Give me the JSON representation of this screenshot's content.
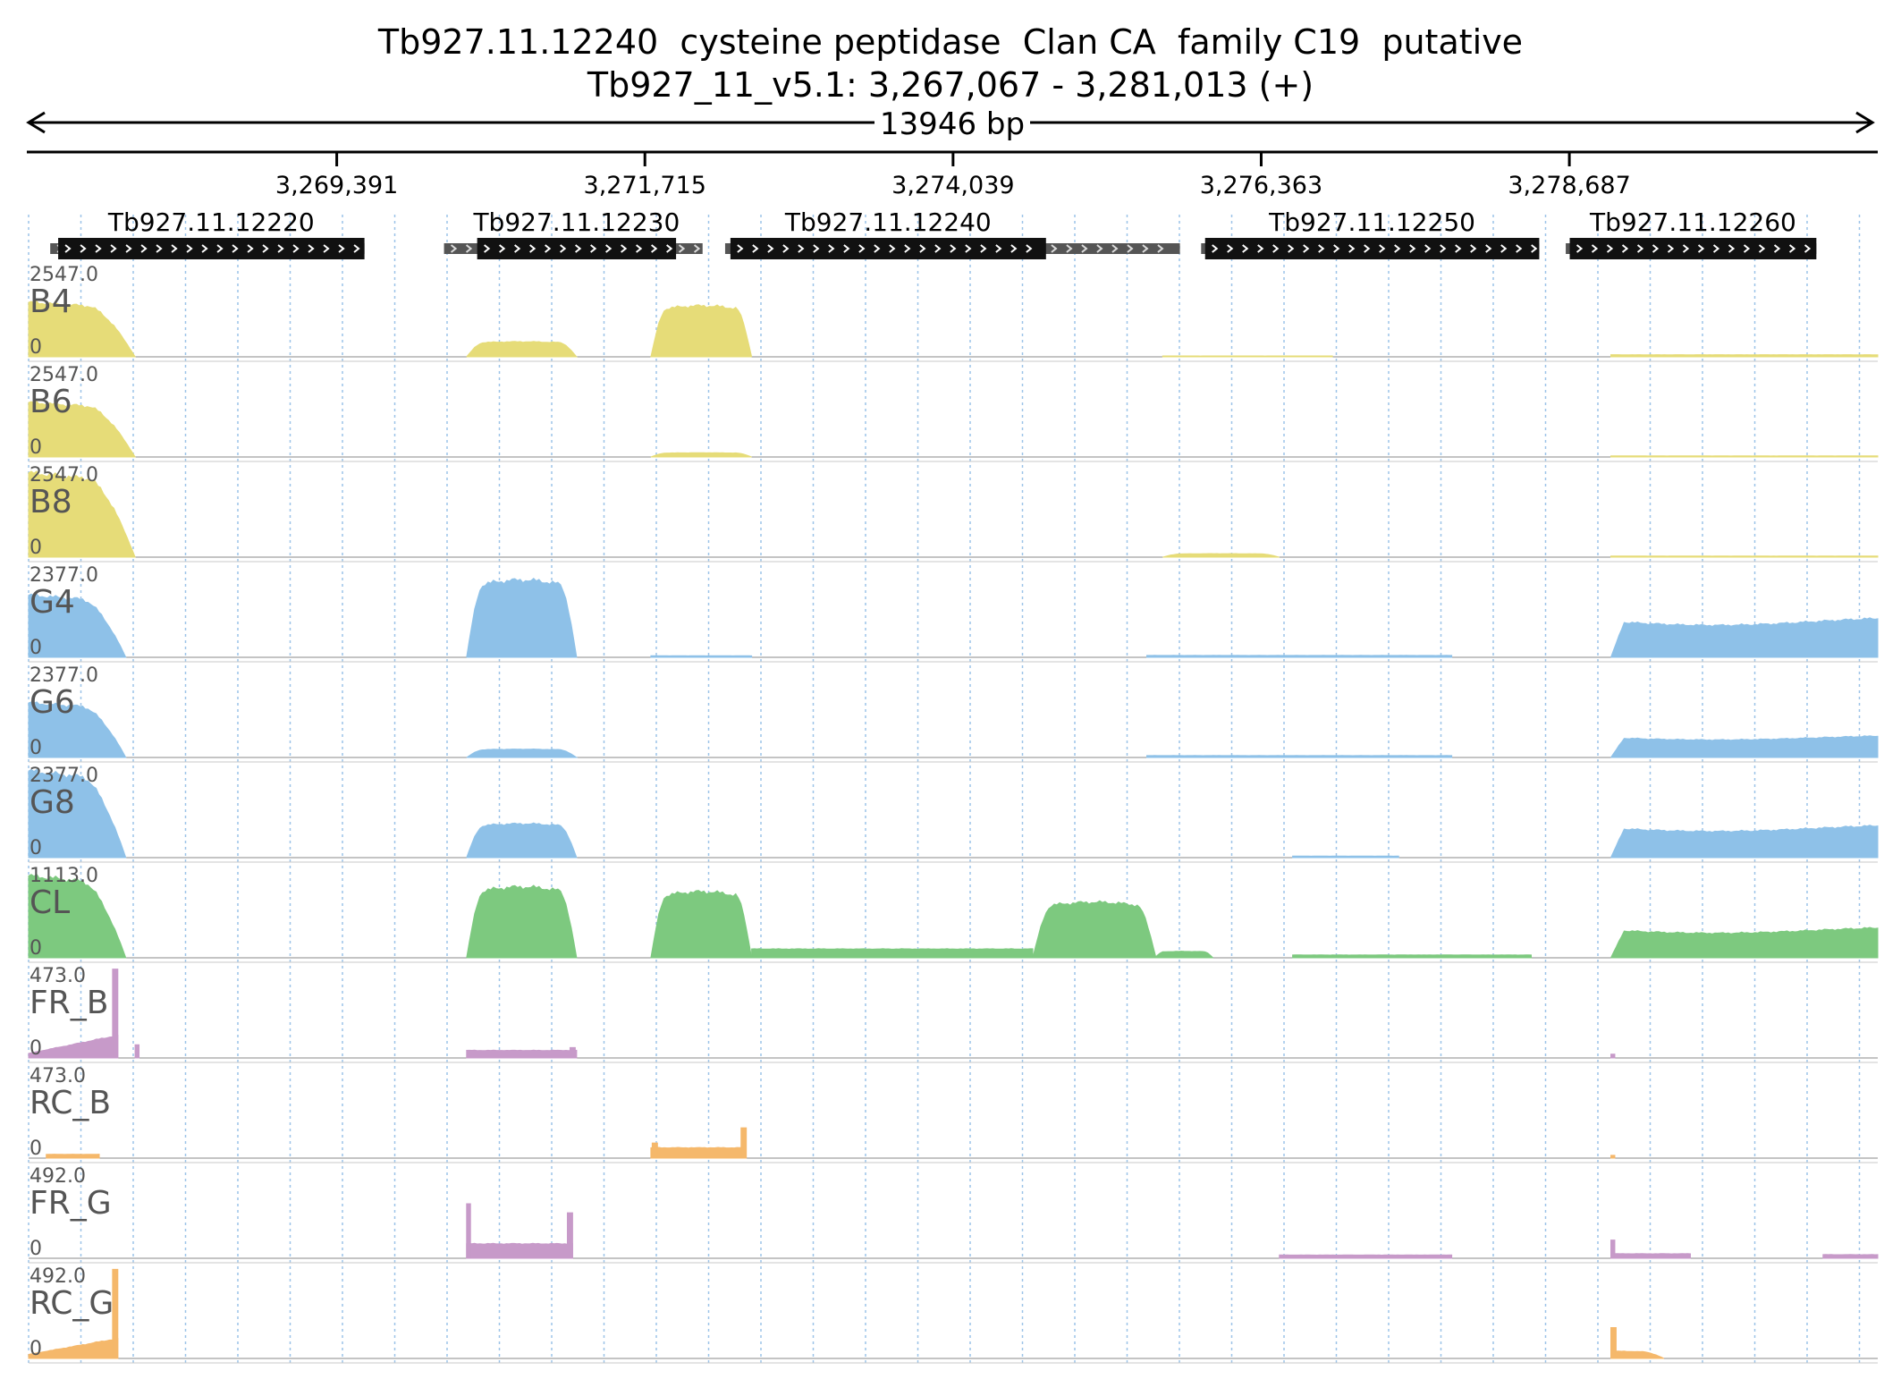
{
  "header": {
    "title": "Tb927.11.12240  cysteine peptidase  Clan CA  family C19  putative",
    "region": "Tb927_11_v5.1: 3,267,067 - 3,281,013 (+)",
    "span_label": "13946 bp"
  },
  "chart_data": {
    "type": "area",
    "chromosome": "Tb927_11_v5.1",
    "xlim": [
      3267067,
      3281013
    ],
    "x_ticks": [
      3269391,
      3271715,
      3274039,
      3276363,
      3278687
    ],
    "x_tick_labels": [
      "3,269,391",
      "3,271,715",
      "3,274,039",
      "3,276,363",
      "3,278,687"
    ],
    "genes": [
      {
        "name": "Tb927.11.12220",
        "strand": "+",
        "cds": [
          3267290,
          3269600
        ],
        "utr": [
          3267230,
          3269600
        ]
      },
      {
        "name": "Tb927.11.12230",
        "strand": "+",
        "cds": [
          3270450,
          3271950
        ],
        "utr": [
          3270200,
          3272150
        ]
      },
      {
        "name": "Tb927.11.12240",
        "strand": "+",
        "cds": [
          3272360,
          3274740
        ],
        "utr": [
          3272320,
          3275750
        ]
      },
      {
        "name": "Tb927.11.12250",
        "strand": "+",
        "cds": [
          3275940,
          3278460
        ],
        "utr": [
          3275910,
          3278460
        ]
      },
      {
        "name": "Tb927.11.12260",
        "strand": "+",
        "cds": [
          3278690,
          3280550
        ],
        "utr": [
          3278660,
          3280550
        ]
      }
    ],
    "tracks": [
      {
        "label": "B4",
        "ymax_label": "2547.0",
        "ymin_label": "0",
        "ylim": [
          0,
          2547
        ],
        "color": "#e6dc78",
        "segments": [
          {
            "start": 3267067,
            "end": 3267870,
            "peak": 1550,
            "shape": "decay"
          },
          {
            "start": 3270370,
            "end": 3271200,
            "peak": 430,
            "shape": "dome"
          },
          {
            "start": 3271760,
            "end": 3272520,
            "peak": 1450,
            "shape": "dome"
          },
          {
            "start": 3275620,
            "end": 3276900,
            "peak": 25,
            "shape": "flat"
          },
          {
            "start": 3279000,
            "end": 3281013,
            "peak": 60,
            "shape": "flat"
          }
        ]
      },
      {
        "label": "B6",
        "ymax_label": "2547.0",
        "ymin_label": "0",
        "ylim": [
          0,
          2547
        ],
        "color": "#e6dc78",
        "segments": [
          {
            "start": 3267067,
            "end": 3267870,
            "peak": 1550,
            "shape": "decay"
          },
          {
            "start": 3271760,
            "end": 3272520,
            "peak": 120,
            "shape": "dome"
          },
          {
            "start": 3279000,
            "end": 3281013,
            "peak": 30,
            "shape": "flat"
          }
        ]
      },
      {
        "label": "B8",
        "ymax_label": "2547.0",
        "ymin_label": "0",
        "ylim": [
          0,
          2547
        ],
        "color": "#e6dc78",
        "segments": [
          {
            "start": 3267067,
            "end": 3267870,
            "peak": 2400,
            "shape": "decay"
          },
          {
            "start": 3275620,
            "end": 3276500,
            "peak": 100,
            "shape": "dome"
          },
          {
            "start": 3279000,
            "end": 3281013,
            "peak": 30,
            "shape": "flat"
          }
        ]
      },
      {
        "label": "G4",
        "ymax_label": "2377.0",
        "ymin_label": "0",
        "ylim": [
          0,
          2377
        ],
        "color": "#8ec1e8",
        "segments": [
          {
            "start": 3267067,
            "end": 3267800,
            "peak": 1650,
            "shape": "decay"
          },
          {
            "start": 3270370,
            "end": 3271200,
            "peak": 2050,
            "shape": "dome"
          },
          {
            "start": 3271760,
            "end": 3272520,
            "peak": 40,
            "shape": "flat"
          },
          {
            "start": 3275500,
            "end": 3277800,
            "peak": 50,
            "shape": "flat"
          },
          {
            "start": 3279000,
            "end": 3281013,
            "peak": 1000,
            "shape": "plateau"
          }
        ]
      },
      {
        "label": "G6",
        "ymax_label": "2377.0",
        "ymin_label": "0",
        "ylim": [
          0,
          2377
        ],
        "color": "#8ec1e8",
        "segments": [
          {
            "start": 3267067,
            "end": 3267800,
            "peak": 1450,
            "shape": "decay"
          },
          {
            "start": 3270370,
            "end": 3271200,
            "peak": 220,
            "shape": "dome"
          },
          {
            "start": 3275500,
            "end": 3277800,
            "peak": 50,
            "shape": "flat"
          },
          {
            "start": 3279000,
            "end": 3281013,
            "peak": 550,
            "shape": "plateau"
          }
        ]
      },
      {
        "label": "G8",
        "ymax_label": "2377.0",
        "ymin_label": "0",
        "ylim": [
          0,
          2377
        ],
        "color": "#8ec1e8",
        "segments": [
          {
            "start": 3267067,
            "end": 3267800,
            "peak": 2300,
            "shape": "decay"
          },
          {
            "start": 3270370,
            "end": 3271200,
            "peak": 900,
            "shape": "dome"
          },
          {
            "start": 3276600,
            "end": 3277400,
            "peak": 40,
            "shape": "flat"
          },
          {
            "start": 3279000,
            "end": 3281013,
            "peak": 820,
            "shape": "plateau"
          }
        ]
      },
      {
        "label": "CL",
        "ymax_label": "1113.0",
        "ymin_label": "0",
        "ylim": [
          0,
          1113
        ],
        "color": "#7dc97f",
        "segments": [
          {
            "start": 3267067,
            "end": 3267800,
            "peak": 1020,
            "shape": "decay"
          },
          {
            "start": 3270370,
            "end": 3271200,
            "peak": 880,
            "shape": "dome"
          },
          {
            "start": 3271760,
            "end": 3272520,
            "peak": 820,
            "shape": "dome"
          },
          {
            "start": 3272520,
            "end": 3274640,
            "peak": 110,
            "shape": "flat"
          },
          {
            "start": 3274640,
            "end": 3275570,
            "peak": 690,
            "shape": "dome"
          },
          {
            "start": 3275560,
            "end": 3276000,
            "peak": 80,
            "shape": "dome"
          },
          {
            "start": 3276600,
            "end": 3278400,
            "peak": 35,
            "shape": "flat"
          },
          {
            "start": 3279000,
            "end": 3281013,
            "peak": 360,
            "shape": "plateau"
          }
        ]
      },
      {
        "label": "FR_B",
        "ymax_label": "473.0",
        "ymin_label": "0",
        "ylim": [
          0,
          473
        ],
        "color": "#c79ac9",
        "segments": [
          {
            "start": 3267067,
            "end": 3267740,
            "peak": 120,
            "shape": "ramp"
          },
          {
            "start": 3267700,
            "end": 3267740,
            "peak": 470,
            "shape": "spike"
          },
          {
            "start": 3267870,
            "end": 3267900,
            "peak": 70,
            "shape": "spike"
          },
          {
            "start": 3270370,
            "end": 3271200,
            "peak": 40,
            "shape": "flat"
          },
          {
            "start": 3271150,
            "end": 3271190,
            "peak": 55,
            "shape": "spike"
          },
          {
            "start": 3279000,
            "end": 3279030,
            "peak": 20,
            "shape": "spike"
          }
        ]
      },
      {
        "label": "RC_B",
        "ymax_label": "473.0",
        "ymin_label": "0",
        "ylim": [
          0,
          473
        ],
        "color": "#f5b86b",
        "segments": [
          {
            "start": 3267200,
            "end": 3267600,
            "peak": 20,
            "shape": "flat"
          },
          {
            "start": 3271760,
            "end": 3272450,
            "peak": 55,
            "shape": "flat"
          },
          {
            "start": 3271770,
            "end": 3271810,
            "peak": 80,
            "shape": "spike"
          },
          {
            "start": 3272440,
            "end": 3272480,
            "peak": 160,
            "shape": "spike"
          },
          {
            "start": 3279000,
            "end": 3279030,
            "peak": 15,
            "shape": "spike"
          }
        ]
      },
      {
        "label": "FR_G",
        "ymax_label": "492.0",
        "ymin_label": "0",
        "ylim": [
          0,
          492
        ],
        "color": "#c79ac9",
        "segments": [
          {
            "start": 3270370,
            "end": 3271170,
            "peak": 80,
            "shape": "flat"
          },
          {
            "start": 3270370,
            "end": 3270400,
            "peak": 300,
            "shape": "spike"
          },
          {
            "start": 3271130,
            "end": 3271170,
            "peak": 250,
            "shape": "spike"
          },
          {
            "start": 3276500,
            "end": 3277800,
            "peak": 18,
            "shape": "flat"
          },
          {
            "start": 3279000,
            "end": 3279030,
            "peak": 100,
            "shape": "spike"
          },
          {
            "start": 3279030,
            "end": 3279600,
            "peak": 25,
            "shape": "flat"
          },
          {
            "start": 3280600,
            "end": 3281013,
            "peak": 20,
            "shape": "flat"
          }
        ]
      },
      {
        "label": "RC_G",
        "ymax_label": "492.0",
        "ymin_label": "0",
        "ylim": [
          0,
          492
        ],
        "color": "#f5b86b",
        "segments": [
          {
            "start": 3267067,
            "end": 3267740,
            "peak": 110,
            "shape": "ramp"
          },
          {
            "start": 3267700,
            "end": 3267740,
            "peak": 490,
            "shape": "spike"
          },
          {
            "start": 3279000,
            "end": 3279040,
            "peak": 170,
            "shape": "spike"
          },
          {
            "start": 3279040,
            "end": 3279400,
            "peak": 40,
            "shape": "decay"
          }
        ]
      }
    ]
  }
}
